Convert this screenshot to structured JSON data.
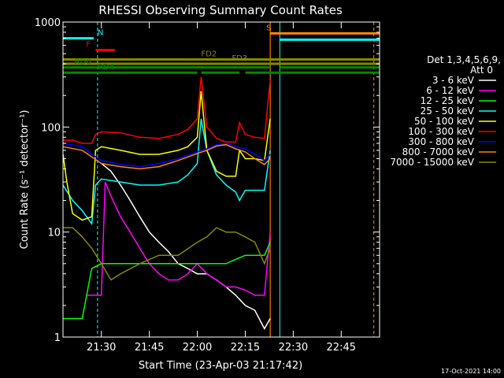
{
  "chart_data": {
    "type": "line",
    "title": "RHESSI Observing Summary Count Rates",
    "xlabel": "Start Time (23-Apr-03 21:17:42)",
    "ylabel": "Count Rate (s⁻¹ detector⁻¹)",
    "y_scale": "log",
    "ylim": [
      1,
      1000
    ],
    "xlim_minutes": [
      21.3,
      22.95
    ],
    "x_ticks": [
      "21:30",
      "21:45",
      "22:00",
      "22:15",
      "22:30",
      "22:45"
    ],
    "y_ticks": [
      "1",
      "10",
      "100",
      "1000"
    ],
    "legend": {
      "header1": "Det 1,3,4,5,6,9,",
      "header2": "Att 0",
      "placement": "right"
    },
    "series": [
      {
        "name": "3 - 6 keV",
        "color": "#ffffff",
        "x": [
          21.5,
          21.55,
          21.6,
          21.65,
          21.7,
          21.75,
          21.8,
          21.85,
          21.9,
          21.95,
          22.0,
          22.05,
          22.1,
          22.15,
          22.2,
          22.25,
          22.3,
          22.35,
          22.38
        ],
        "y": [
          45,
          38,
          28,
          20,
          14,
          10,
          8,
          6.5,
          5,
          4.5,
          4,
          4,
          3.5,
          3,
          2.5,
          2,
          1.8,
          1.2,
          1.5
        ]
      },
      {
        "name": "6 - 12 keV",
        "color": "#ff00ff",
        "x": [
          21.42,
          21.5,
          21.52,
          21.55,
          21.6,
          21.65,
          21.7,
          21.75,
          21.8,
          21.85,
          21.9,
          21.95,
          22.0,
          22.05,
          22.1,
          22.15,
          22.2,
          22.25,
          22.3,
          22.35,
          22.38
        ],
        "y": [
          2.5,
          2.5,
          30,
          22,
          14,
          10,
          7,
          5,
          4,
          3.5,
          3.5,
          4,
          5,
          4,
          3.5,
          3,
          3,
          2.8,
          2.5,
          2.5,
          10
        ]
      },
      {
        "name": "12 - 25 keV",
        "color": "#00ff00",
        "x": [
          21.3,
          21.4,
          21.45,
          21.5,
          21.55,
          21.6,
          21.7,
          21.8,
          21.9,
          22.0,
          22.05,
          22.1,
          22.15,
          22.2,
          22.25,
          22.3,
          22.35,
          22.38
        ],
        "y": [
          1.5,
          1.5,
          4.5,
          5,
          5,
          5,
          5,
          5,
          5,
          5,
          5,
          5,
          5,
          5.5,
          6,
          6,
          6,
          8
        ]
      },
      {
        "name": "25 - 50 keV",
        "color": "#00ffff",
        "x": [
          21.3,
          21.35,
          21.4,
          21.45,
          21.47,
          21.5,
          21.6,
          21.7,
          21.8,
          21.9,
          21.95,
          22.0,
          22.02,
          22.05,
          22.1,
          22.15,
          22.2,
          22.22,
          22.25,
          22.3,
          22.35,
          22.38
        ],
        "y": [
          28,
          20,
          16,
          12,
          28,
          32,
          30,
          28,
          28,
          30,
          35,
          45,
          120,
          60,
          35,
          28,
          24,
          20,
          25,
          25,
          25,
          60
        ]
      },
      {
        "name": "50 - 100 keV",
        "color": "#ffff00",
        "x": [
          21.3,
          21.32,
          21.35,
          21.4,
          21.45,
          21.47,
          21.5,
          21.6,
          21.7,
          21.8,
          21.9,
          21.95,
          22.0,
          22.02,
          22.05,
          22.1,
          22.15,
          22.2,
          22.22,
          22.25,
          22.3,
          22.35,
          22.38
        ],
        "y": [
          55,
          30,
          15,
          13,
          14,
          60,
          65,
          60,
          55,
          55,
          60,
          65,
          80,
          220,
          60,
          38,
          34,
          34,
          60,
          50,
          50,
          48,
          120
        ]
      },
      {
        "name": "100 - 300 keV",
        "color": "#ff0000",
        "x": [
          21.3,
          21.35,
          21.4,
          21.45,
          21.47,
          21.5,
          21.6,
          21.7,
          21.8,
          21.9,
          21.95,
          22.0,
          22.02,
          22.05,
          22.1,
          22.15,
          22.2,
          22.22,
          22.25,
          22.3,
          22.35,
          22.38
        ],
        "y": [
          75,
          75,
          70,
          70,
          85,
          90,
          88,
          80,
          78,
          85,
          95,
          120,
          300,
          100,
          78,
          72,
          72,
          110,
          85,
          80,
          78,
          280
        ]
      },
      {
        "name": "300 - 800 keV",
        "color": "#0000ff",
        "x": [
          21.3,
          21.4,
          21.45,
          21.5,
          21.6,
          21.7,
          21.8,
          21.9,
          22.0,
          22.05,
          22.1,
          22.15,
          22.2,
          22.25,
          22.3,
          22.35,
          22.38
        ],
        "y": [
          70,
          65,
          55,
          48,
          44,
          42,
          45,
          50,
          58,
          62,
          68,
          70,
          65,
          62,
          55,
          48,
          55
        ]
      },
      {
        "name": "800 - 7000 keV",
        "color": "#ff8800",
        "x": [
          21.3,
          21.4,
          21.45,
          21.5,
          21.6,
          21.7,
          21.8,
          21.9,
          22.0,
          22.05,
          22.1,
          22.15,
          22.2,
          22.25,
          22.3,
          22.35,
          22.38
        ],
        "y": [
          65,
          60,
          52,
          45,
          42,
          40,
          42,
          48,
          56,
          60,
          66,
          68,
          62,
          58,
          50,
          44,
          50
        ]
      },
      {
        "name": "7000 - 15000 keV",
        "color": "#888800",
        "x": [
          21.3,
          21.35,
          21.4,
          21.45,
          21.5,
          21.55,
          21.6,
          21.7,
          21.8,
          21.9,
          22.0,
          22.05,
          22.1,
          22.15,
          22.2,
          22.25,
          22.3,
          22.35,
          22.38
        ],
        "y": [
          11,
          11,
          9,
          7,
          5,
          3.5,
          4,
          5,
          6,
          6,
          8,
          9,
          11,
          10,
          10,
          9,
          8,
          5,
          7
        ]
      }
    ],
    "flags": [
      {
        "label": "N",
        "color": "#00ffff",
        "segments": [
          [
            21.3,
            21.46
          ]
        ],
        "y": 700,
        "label_x": 21.48
      },
      {
        "label": "F",
        "color": "#ff0000",
        "segments": [
          [
            21.47,
            21.57
          ]
        ],
        "y": 540,
        "label_x": 21.42
      },
      {
        "label": "S",
        "color": "#ff8800",
        "segments": [
          [
            22.38,
            22.95
          ]
        ],
        "y": 780,
        "label_x": 22.36
      },
      {
        "label": "",
        "color": "#00ffff",
        "segments": [
          [
            22.43,
            22.95
          ]
        ],
        "y": 680,
        "label_x": null
      },
      {
        "label": "FD2",
        "color": "#888800",
        "segments": [
          [
            21.3,
            22.95
          ]
        ],
        "y": 440,
        "label_x": 22.02
      },
      {
        "label": "FD3",
        "color": "#888800",
        "segments": [
          [
            21.3,
            22.95
          ]
        ],
        "y": 400,
        "label_x": 22.18
      },
      {
        "label": "RD0",
        "color": "#008800",
        "segments": [
          [
            21.3,
            22.38
          ],
          [
            22.43,
            22.95
          ]
        ],
        "y": 370,
        "label_x": 21.36
      },
      {
        "label": "RD4",
        "color": "#008800",
        "segments": [
          [
            21.3,
            22.0
          ],
          [
            22.02,
            22.22
          ],
          [
            22.25,
            22.95
          ]
        ],
        "y": 330,
        "label_x": 21.48
      }
    ],
    "vlines": [
      {
        "x": 21.48,
        "color": "#00ffff",
        "dashed": true
      },
      {
        "x": 22.38,
        "color": "#ff0000",
        "dashed": false
      },
      {
        "x": 22.38,
        "color": "#ff8800",
        "dashed": false
      },
      {
        "x": 22.43,
        "color": "#00ffff",
        "dashed": false
      },
      {
        "x": 22.92,
        "color": "#ff8800",
        "dashed": true
      }
    ]
  },
  "footer": {
    "timestamp": "17-Oct-2021 14:00"
  }
}
